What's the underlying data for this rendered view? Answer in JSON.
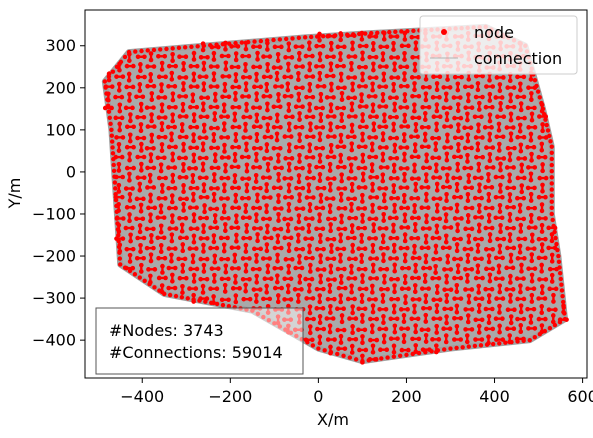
{
  "chart_data": {
    "type": "scatter",
    "title": "",
    "xlabel": "X/m",
    "ylabel": "Y/m",
    "xlim": [
      -530,
      610
    ],
    "ylim": [
      -490,
      385
    ],
    "xticks": [
      -400,
      -200,
      0,
      200,
      400,
      600
    ],
    "yticks": [
      -400,
      -300,
      -200,
      -100,
      0,
      100,
      200,
      300
    ],
    "xtick_labels": [
      "−400",
      "−200",
      "0",
      "200",
      "400",
      "600"
    ],
    "ytick_labels": [
      "−400",
      "−300",
      "−200",
      "−100",
      "0",
      "100",
      "200",
      "300"
    ],
    "grid": false,
    "legend_position": "top-right",
    "series": [
      {
        "name": "node",
        "marker": "dot",
        "color": "#ff0000"
      },
      {
        "name": "connection",
        "marker": "line",
        "color": "#a0a0a0"
      }
    ],
    "region_outline": [
      [
        -485,
        215
      ],
      [
        -430,
        285
      ],
      [
        -260,
        300
      ],
      [
        -30,
        320
      ],
      [
        120,
        330
      ],
      [
        380,
        345
      ],
      [
        470,
        300
      ],
      [
        510,
        150
      ],
      [
        530,
        60
      ],
      [
        530,
        -100
      ],
      [
        545,
        -200
      ],
      [
        560,
        -350
      ],
      [
        480,
        -400
      ],
      [
        300,
        -420
      ],
      [
        100,
        -450
      ],
      [
        0,
        -420
      ],
      [
        -150,
        -330
      ],
      [
        -350,
        -290
      ],
      [
        -450,
        -220
      ],
      [
        -470,
        100
      ]
    ],
    "annotation": {
      "position": "bottom-left",
      "lines": [
        "#Nodes: 3743",
        "#Connections: 59014"
      ]
    }
  },
  "colors": {
    "node": "#ff0000",
    "connection": "#a0a0a0",
    "axes": "#000000",
    "background": "#ffffff"
  }
}
